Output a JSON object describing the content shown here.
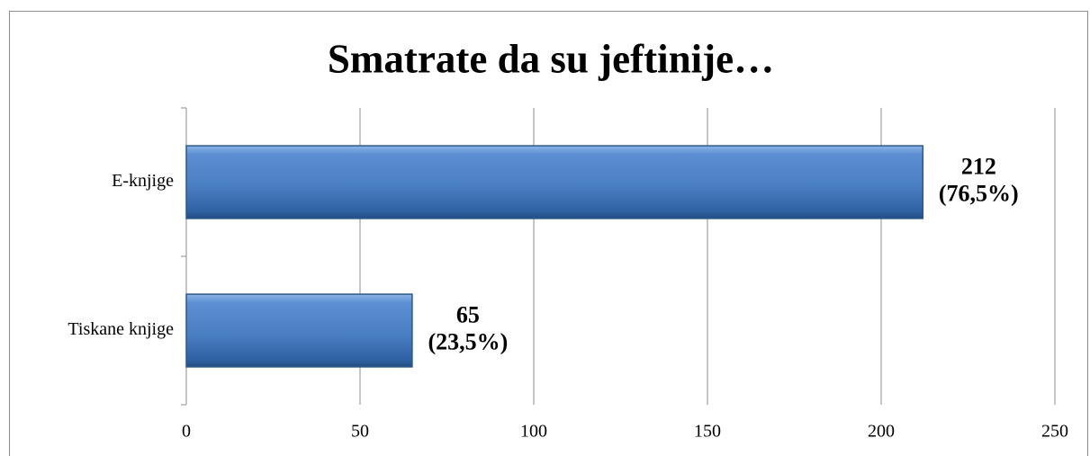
{
  "chart_data": {
    "type": "hbar",
    "title": "Smatrate da su jeftinije…",
    "categories": [
      "E-knjige",
      "Tiskane knjige"
    ],
    "values": [
      212,
      65
    ],
    "value_labels": [
      [
        "212",
        "(76,5%)"
      ],
      [
        "65",
        "(23,5%)"
      ]
    ],
    "color": "#4f81bd",
    "xlim": [
      0,
      250
    ],
    "xticks": [
      0,
      50,
      100,
      150,
      200,
      250
    ],
    "grid": true
  }
}
